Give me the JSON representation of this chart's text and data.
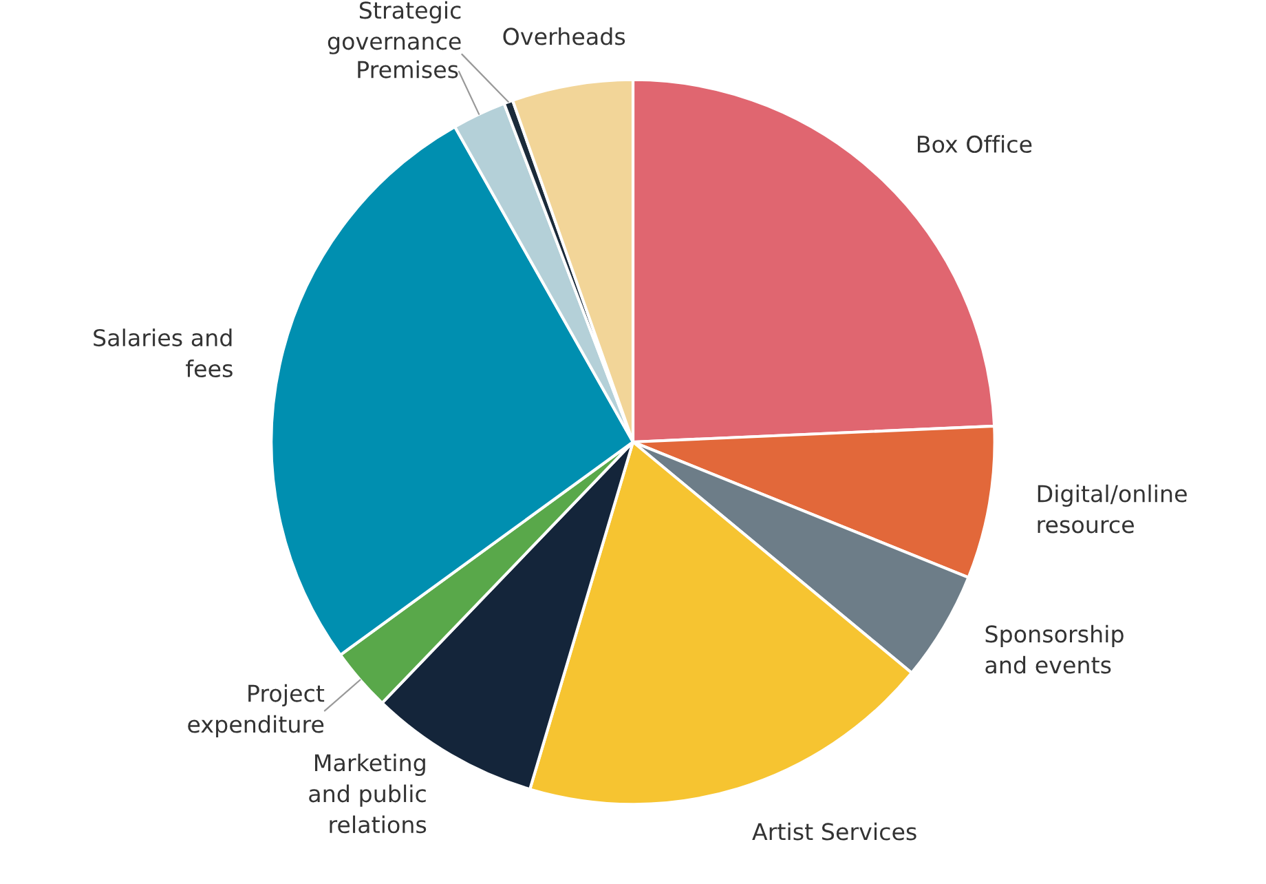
{
  "chart_data": {
    "type": "pie",
    "categories": [
      "Box Office",
      "Digital/online\nresource",
      "Sponsorship\nand events",
      "Artist Services",
      "Marketing\nand public\nrelations",
      "Project\nexpenditure",
      "Salaries and\nfees",
      "Premises",
      "Strategic\ngovernance",
      "Overheads"
    ],
    "values": [
      24.3,
      6.8,
      4.9,
      18.6,
      7.6,
      2.8,
      26.8,
      2.4,
      0.4,
      5.4
    ],
    "colors": [
      "#e06670",
      "#e2683a",
      "#6d7d88",
      "#f6c431",
      "#14253a",
      "#59a84a",
      "#008fb0",
      "#b4d0d8",
      "#1b2b3a",
      "#f2d598"
    ],
    "legend": false
  }
}
